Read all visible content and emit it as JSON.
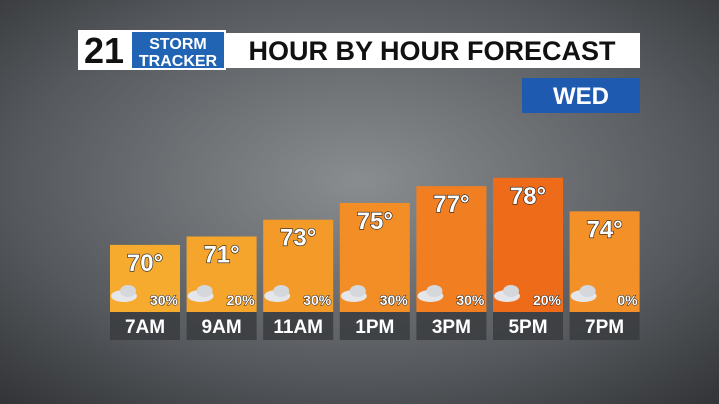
{
  "header": {
    "logo_number": "21",
    "logo_line1": "STORM",
    "logo_line2": "TRACKER",
    "title": "HOUR BY HOUR FORECAST",
    "day": "WED"
  },
  "chart_data": {
    "type": "bar",
    "categories": [
      "7AM",
      "9AM",
      "11AM",
      "1PM",
      "3PM",
      "5PM",
      "7PM"
    ],
    "values": [
      70,
      71,
      73,
      75,
      77,
      78,
      74
    ],
    "value_labels": [
      "70°",
      "71°",
      "73°",
      "75°",
      "77°",
      "78°",
      "74°"
    ],
    "colors": [
      "#f6ab2e",
      "#f6a52c",
      "#f49a29",
      "#f38e26",
      "#f17f21",
      "#ee6b19",
      "#f39128"
    ],
    "precipitation": [
      30,
      20,
      30,
      30,
      30,
      20,
      0
    ],
    "precipitation_labels": [
      "30%",
      "20%",
      "30%",
      "30%",
      "30%",
      "20%",
      "0%"
    ],
    "ylim": [
      62,
      80
    ]
  }
}
